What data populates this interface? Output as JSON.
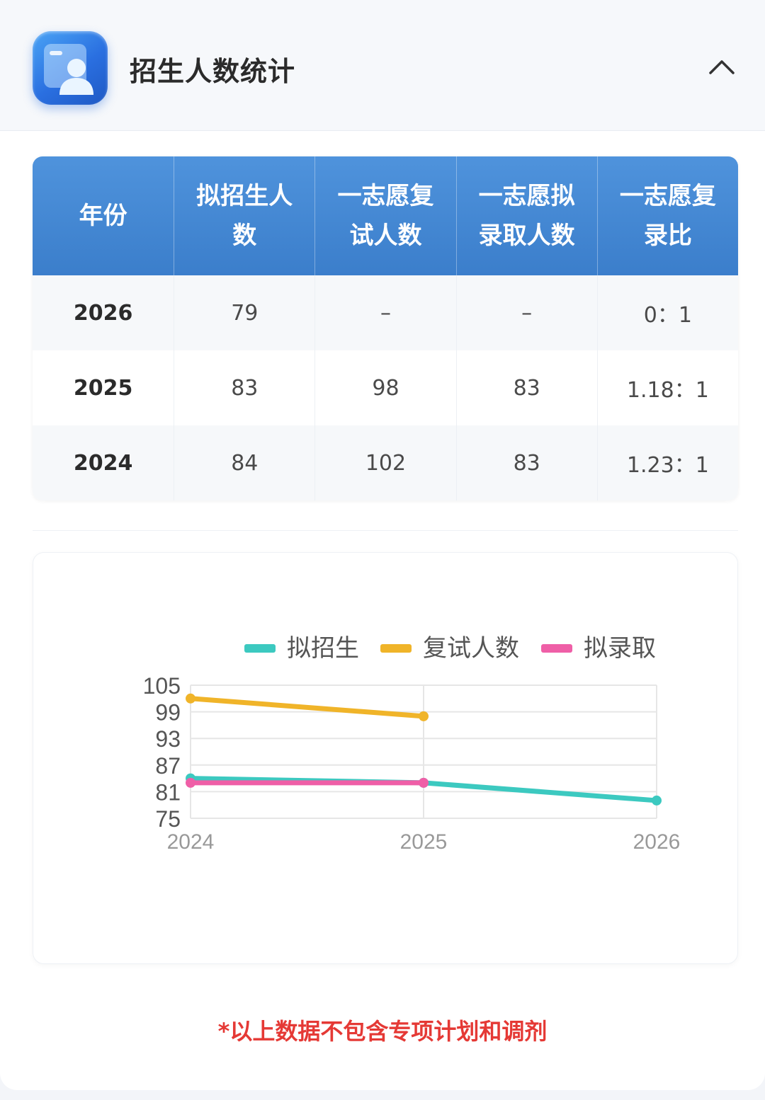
{
  "header": {
    "title": "招生人数统计",
    "app_icon": "profile-card-icon",
    "collapse_icon": "chevron-up-icon"
  },
  "table": {
    "headers": [
      "年份",
      "拟招生人数",
      "一志愿复试人数",
      "一志愿拟录取人数",
      "一志愿复录比"
    ],
    "rows": [
      [
        "2026",
        "79",
        "–",
        "–",
        "0：1"
      ],
      [
        "2025",
        "83",
        "98",
        "83",
        "1.18：1"
      ],
      [
        "2024",
        "84",
        "102",
        "83",
        "1.23：1"
      ]
    ]
  },
  "chart_data": {
    "type": "line",
    "x": [
      "2024",
      "2025",
      "2026"
    ],
    "ylim": [
      75,
      105
    ],
    "yticks": [
      "105",
      "99",
      "93",
      "87",
      "81",
      "75"
    ],
    "grid": true,
    "legend_position": "top",
    "series": [
      {
        "name": "拟招生",
        "color": "#3cc9c0",
        "values": [
          84,
          83,
          79
        ]
      },
      {
        "name": "复试人数",
        "color": "#f0b429",
        "values": [
          102,
          98,
          null
        ]
      },
      {
        "name": "拟录取",
        "color": "#ef5fa7",
        "values": [
          83,
          83,
          null
        ]
      }
    ]
  },
  "note": "*以上数据不包含专项计划和调剂",
  "colors": {
    "header_blue": "#4389d6",
    "note_red": "#e53935"
  }
}
